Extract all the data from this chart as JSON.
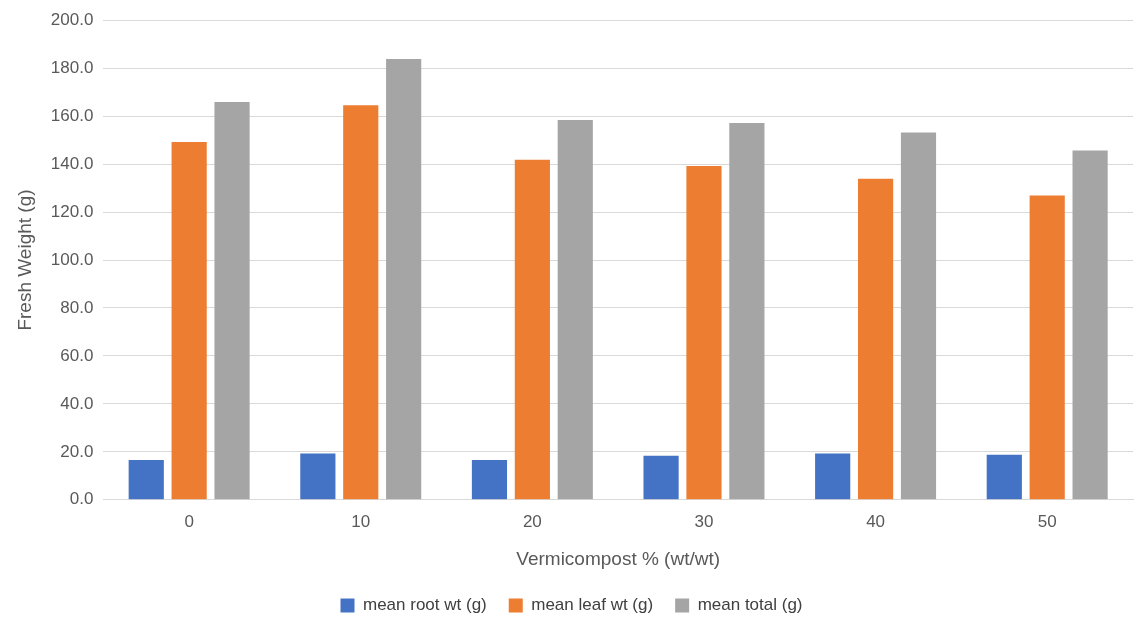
{
  "chart_data": {
    "type": "bar",
    "xlabel": "Vermicompost % (wt/wt)",
    "ylabel": "Fresh Weight (g)",
    "categories": [
      "0",
      "10",
      "20",
      "30",
      "40",
      "50"
    ],
    "series": [
      {
        "name": "mean root wt (g)",
        "color": "#4472c4",
        "values": [
          16.6,
          19.3,
          16.6,
          18.4,
          19.3,
          18.8
        ]
      },
      {
        "name": "mean leaf wt (g)",
        "color": "#ed7d31",
        "values": [
          149.2,
          164.5,
          141.8,
          139.2,
          133.9,
          126.9
        ]
      },
      {
        "name": "mean total (g)",
        "color": "#a5a5a5",
        "values": [
          165.9,
          183.8,
          158.4,
          157.1,
          153.2,
          145.7
        ]
      }
    ],
    "ylim": [
      0,
      200
    ],
    "yticks": [
      {
        "value": 0,
        "label": "0.0"
      },
      {
        "value": 20,
        "label": "20.0"
      },
      {
        "value": 40,
        "label": "40.0"
      },
      {
        "value": 60,
        "label": "60.0"
      },
      {
        "value": 80,
        "label": "80.0"
      },
      {
        "value": 100,
        "label": "100.0"
      },
      {
        "value": 120,
        "label": "120.0"
      },
      {
        "value": 140,
        "label": "140.0"
      },
      {
        "value": 160,
        "label": "160.0"
      },
      {
        "value": 180,
        "label": "180.0"
      },
      {
        "value": 200,
        "label": "200.0"
      }
    ],
    "grid": "y",
    "legend": "bottom"
  }
}
